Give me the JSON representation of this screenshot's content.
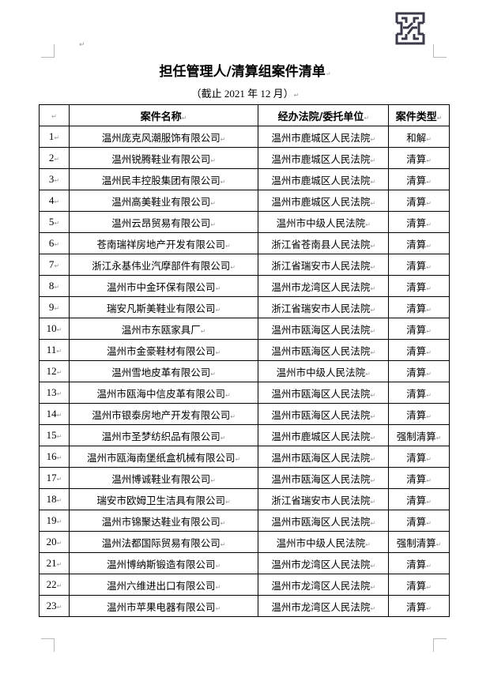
{
  "logo": {
    "icon": "company-logo-icon",
    "color": "#3a3a4a"
  },
  "title": "担任管理人/清算组案件清单",
  "subtitle": "（截止 2021 年 12 月）",
  "table": {
    "headers": [
      "",
      "案件名称",
      "经办法院/委托单位",
      "案件类型"
    ],
    "rows": [
      {
        "no": "1",
        "name": "温州庞克风潮服饰有限公司",
        "court": "温州市鹿城区人民法院",
        "type": "和解"
      },
      {
        "no": "2",
        "name": "温州锐腾鞋业有限公司",
        "court": "温州市鹿城区人民法院",
        "type": "清算"
      },
      {
        "no": "3",
        "name": "温州民丰控股集团有限公司",
        "court": "温州市鹿城区人民法院",
        "type": "清算"
      },
      {
        "no": "4",
        "name": "温州高美鞋业有限公司",
        "court": "温州市鹿城区人民法院",
        "type": "清算"
      },
      {
        "no": "5",
        "name": "温州云昂贸易有限公司",
        "court": "温州市中级人民法院",
        "type": "清算"
      },
      {
        "no": "6",
        "name": "苍南瑞祥房地产开发有限公司",
        "court": "浙江省苍南县人民法院",
        "type": "清算"
      },
      {
        "no": "7",
        "name": "浙江永基伟业汽摩部件有限公司",
        "court": "浙江省瑞安市人民法院",
        "type": "清算"
      },
      {
        "no": "8",
        "name": "温州市中金环保有限公司",
        "court": "温州市龙湾区人民法院",
        "type": "清算"
      },
      {
        "no": "9",
        "name": "瑞安凡斯美鞋业有限公司",
        "court": "浙江省瑞安市人民法院",
        "type": "清算"
      },
      {
        "no": "10",
        "name": "温州市东瓯家具厂",
        "court": "温州市瓯海区人民法院",
        "type": "清算"
      },
      {
        "no": "11",
        "name": "温州市金豪鞋材有限公司",
        "court": "温州市瓯海区人民法院",
        "type": "清算"
      },
      {
        "no": "12",
        "name": "温州雪地皮革有限公司",
        "court": "温州市中级人民法院",
        "type": "清算"
      },
      {
        "no": "13",
        "name": "温州市瓯海中信皮革有限公司",
        "court": "温州市瓯海区人民法院",
        "type": "清算"
      },
      {
        "no": "14",
        "name": "温州市银泰房地产开发有限公司",
        "court": "温州市瓯海区人民法院",
        "type": "清算"
      },
      {
        "no": "15",
        "name": "温州市圣梦纺织品有限公司",
        "court": "温州市鹿城区人民法院",
        "type": "强制清算"
      },
      {
        "no": "16",
        "name": "温州市瓯海南堡纸盒机械有限公司",
        "court": "温州市瓯海区人民法院",
        "type": "清算"
      },
      {
        "no": "17",
        "name": "温州博诚鞋业有限公司",
        "court": "温州市瓯海区人民法院",
        "type": "清算"
      },
      {
        "no": "18",
        "name": "瑞安市欧姆卫生洁具有限公司",
        "court": "浙江省瑞安市人民法院",
        "type": "清算"
      },
      {
        "no": "19",
        "name": "温州市锦聚达鞋业有限公司",
        "court": "温州市瓯海区人民法院",
        "type": "清算"
      },
      {
        "no": "20",
        "name": "温州法都国际贸易有限公司",
        "court": "温州市中级人民法院",
        "type": "强制清算"
      },
      {
        "no": "21",
        "name": "温州博纳斯锻造有限公司",
        "court": "温州市龙湾区人民法院",
        "type": "清算"
      },
      {
        "no": "22",
        "name": "温州六维进出口有限公司",
        "court": "温州市龙湾区人民法院",
        "type": "清算"
      },
      {
        "no": "23",
        "name": "温州市苹果电器有限公司",
        "court": "温州市龙湾区人民法院",
        "type": "清算"
      }
    ]
  }
}
